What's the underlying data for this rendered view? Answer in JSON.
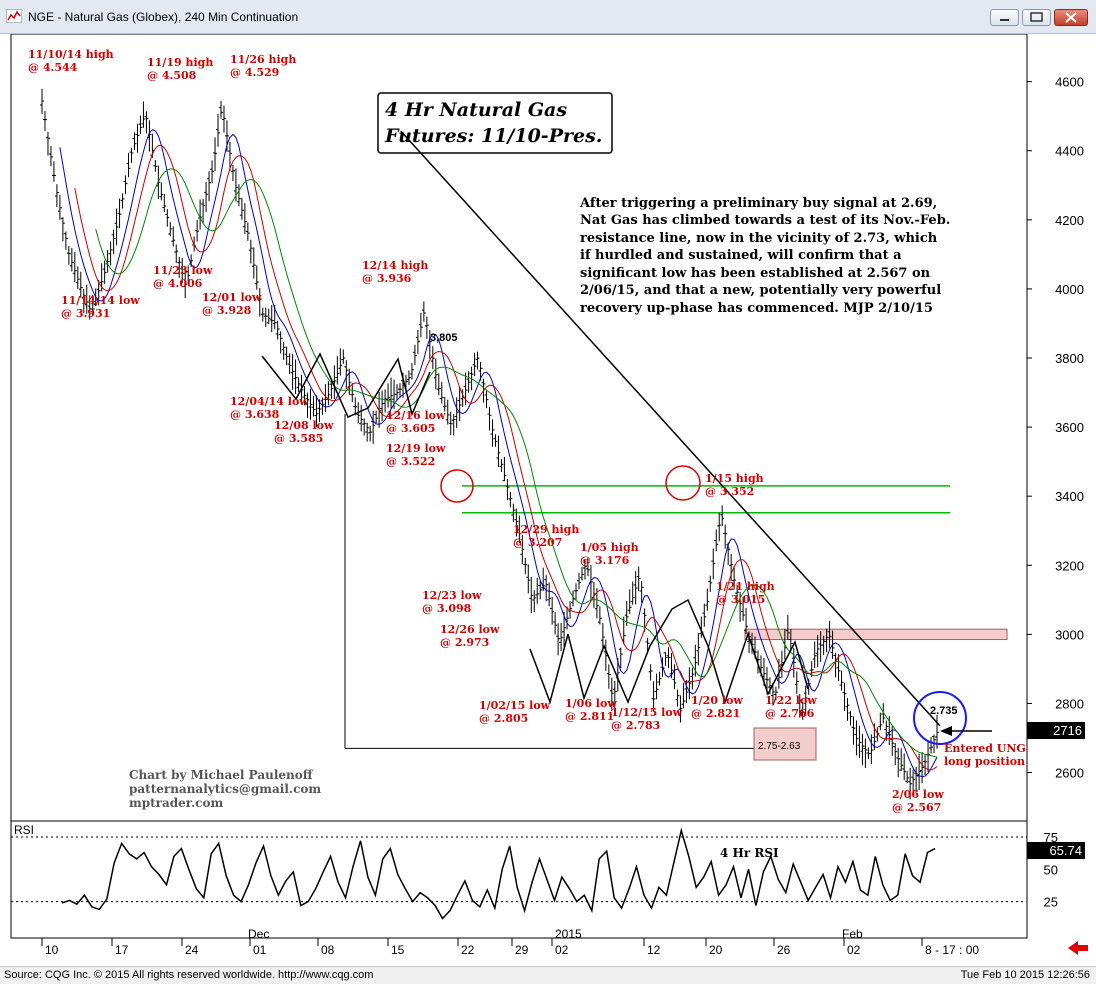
{
  "window": {
    "title": "NGE - Natural Gas (Globex), 240 Min Continuation",
    "minimize_icon": "minimize-icon",
    "maximize_icon": "maximize-icon",
    "close_icon": "close-icon"
  },
  "footer": {
    "source": "Source: CQG Inc. © 2015 All rights reserved worldwide. http://www.cqg.com",
    "timestamp": "Tue Feb 10 2015 12:26:56"
  },
  "chart_data": [
    {
      "type": "bar",
      "title_line1": "4 Hr Natural Gas",
      "title_line2": "Futures:  11/10-Pres.",
      "ylim": [
        2480,
        4680
      ],
      "y_ticks": [
        2600,
        2800,
        3000,
        3200,
        3400,
        3600,
        3800,
        4000,
        4200,
        4400,
        4600
      ],
      "y_tick_labels": [
        "2600",
        "2800",
        "3000",
        "3200",
        "3400",
        "3600",
        "3800",
        "4000",
        "4200",
        "4400",
        "4600"
      ],
      "x_ticks": [
        "10",
        "17",
        "24",
        "01",
        "08",
        "15",
        "22",
        "29",
        "02",
        "12",
        "20",
        "26",
        "02",
        "8 - 17 : 00"
      ],
      "month_labels": [
        "Dec",
        "2015",
        "Feb"
      ],
      "last_price": "2716",
      "ohlc_path": [
        {
          "x": 0,
          "y": 4544
        },
        {
          "x": 3,
          "y": 4300
        },
        {
          "x": 6,
          "y": 4100
        },
        {
          "x": 9,
          "y": 3990
        },
        {
          "x": 11,
          "y": 3931
        },
        {
          "x": 14,
          "y": 4050
        },
        {
          "x": 17,
          "y": 4200
        },
        {
          "x": 20,
          "y": 4400
        },
        {
          "x": 23,
          "y": 4508
        },
        {
          "x": 26,
          "y": 4300
        },
        {
          "x": 29,
          "y": 4150
        },
        {
          "x": 32,
          "y": 4006
        },
        {
          "x": 35,
          "y": 4200
        },
        {
          "x": 38,
          "y": 4350
        },
        {
          "x": 40,
          "y": 4529
        },
        {
          "x": 43,
          "y": 4300
        },
        {
          "x": 46,
          "y": 4150
        },
        {
          "x": 49,
          "y": 3928
        },
        {
          "x": 52,
          "y": 3900
        },
        {
          "x": 55,
          "y": 3780
        },
        {
          "x": 58,
          "y": 3700
        },
        {
          "x": 61,
          "y": 3638
        },
        {
          "x": 64,
          "y": 3700
        },
        {
          "x": 67,
          "y": 3800
        },
        {
          "x": 70,
          "y": 3640
        },
        {
          "x": 73,
          "y": 3585
        },
        {
          "x": 76,
          "y": 3680
        },
        {
          "x": 79,
          "y": 3700
        },
        {
          "x": 82,
          "y": 3750
        },
        {
          "x": 85,
          "y": 3936
        },
        {
          "x": 88,
          "y": 3720
        },
        {
          "x": 91,
          "y": 3605
        },
        {
          "x": 94,
          "y": 3700
        },
        {
          "x": 97,
          "y": 3805
        },
        {
          "x": 100,
          "y": 3600
        },
        {
          "x": 103,
          "y": 3450
        },
        {
          "x": 106,
          "y": 3300
        },
        {
          "x": 109,
          "y": 3098
        },
        {
          "x": 112,
          "y": 3150
        },
        {
          "x": 115,
          "y": 2973
        },
        {
          "x": 118,
          "y": 3100
        },
        {
          "x": 121,
          "y": 3207
        },
        {
          "x": 124,
          "y": 3050
        },
        {
          "x": 127,
          "y": 2805
        },
        {
          "x": 130,
          "y": 3050
        },
        {
          "x": 133,
          "y": 3176
        },
        {
          "x": 136,
          "y": 2811
        },
        {
          "x": 139,
          "y": 2950
        },
        {
          "x": 142,
          "y": 2783
        },
        {
          "x": 145,
          "y": 2900
        },
        {
          "x": 148,
          "y": 3100
        },
        {
          "x": 151,
          "y": 3352
        },
        {
          "x": 154,
          "y": 3150
        },
        {
          "x": 157,
          "y": 3000
        },
        {
          "x": 160,
          "y": 2900
        },
        {
          "x": 163,
          "y": 2821
        },
        {
          "x": 166,
          "y": 3015
        },
        {
          "x": 169,
          "y": 2766
        },
        {
          "x": 172,
          "y": 2950
        },
        {
          "x": 175,
          "y": 3000
        },
        {
          "x": 178,
          "y": 2850
        },
        {
          "x": 181,
          "y": 2700
        },
        {
          "x": 184,
          "y": 2650
        },
        {
          "x": 187,
          "y": 2760
        },
        {
          "x": 190,
          "y": 2650
        },
        {
          "x": 193,
          "y": 2567
        },
        {
          "x": 196,
          "y": 2620
        },
        {
          "x": 199,
          "y": 2716
        }
      ],
      "x_span": [
        0,
        199
      ],
      "resistance_line": {
        "from": {
          "x": 40,
          "y": 4529
        },
        "to": {
          "x": 199,
          "y": 2735
        }
      },
      "support_line": 2670,
      "horizontal_levels": [
        3430,
        3352
      ],
      "resistance_zone": [
        2985,
        3015
      ],
      "support_zone_label": "2.75-2.63",
      "target_label": "2.735",
      "annotations": [
        {
          "text1": "11/10/14 high",
          "text2": "@ 4.544"
        },
        {
          "text1": "11/19 high",
          "text2": "@ 4.508"
        },
        {
          "text1": "11/26 high",
          "text2": "@ 4.529"
        },
        {
          "text1": "11/14/14 low",
          "text2": "@ 3.931"
        },
        {
          "text1": "11/23 low",
          "text2": "@ 4.006"
        },
        {
          "text1": "12/01 low",
          "text2": "@ 3.928"
        },
        {
          "text1": "12/14 high",
          "text2": "@ 3.936"
        },
        {
          "text1": "12/04/14 low",
          "text2": "@ 3.638"
        },
        {
          "text1": "12/08 low",
          "text2": "@ 3.585"
        },
        {
          "text1": "12/16 low",
          "text2": "@ 3.605"
        },
        {
          "text1": "12/19 low",
          "text2": "@ 3.522"
        },
        {
          "text1": "12/29 high",
          "text2": "@ 3.207"
        },
        {
          "text1": "1/05 high",
          "text2": "@ 3.176"
        },
        {
          "text1": "12/23 low",
          "text2": "@ 3.098"
        },
        {
          "text1": "12/26 low",
          "text2": "@ 2.973"
        },
        {
          "text1": "1/02/15 low",
          "text2": "@ 2.805"
        },
        {
          "text1": "1/06 low",
          "text2": "@ 2.811"
        },
        {
          "text1": "1/12/15 low",
          "text2": "@ 2.783"
        },
        {
          "text1": "1/15 high",
          "text2": "@ 3.352"
        },
        {
          "text1": "1/21 high",
          "text2": "@ 3.015"
        },
        {
          "text1": "1/20 low",
          "text2": "@ 2.821"
        },
        {
          "text1": "1/22 low",
          "text2": "@ 2.766"
        },
        {
          "text1": "2/06 low",
          "text2": "@ 2.567"
        },
        {
          "text1": "Entered UNG",
          "text2": "long position"
        }
      ],
      "peak_label": "3,805",
      "commentary": [
        "After triggering a preliminary buy signal at 2.69,",
        "Nat Gas has climbed towards a test of its Nov.-Feb.",
        "resistance line, now in the vicinity of 2.73, which",
        "if hurdled and sustained, will confirm that a",
        "significant low has been established at 2.567 on",
        "2/06/15, and that a new, potentially very powerful",
        "recovery up-phase has commenced. MJP 2/10/15"
      ],
      "credits": [
        "Chart by Michael Paulenoff",
        "patternanalytics@gmail.com",
        "mptrader.com"
      ],
      "colors": {
        "price": "#000000",
        "ma_fast": "#0000cc",
        "ma_mid": "#cc0000",
        "ma_slow": "#008800",
        "annotation": "#d40000",
        "levels": "#00bb00",
        "circle_red": "#dd0000",
        "circle_blue": "#1a1aff"
      }
    },
    {
      "type": "line",
      "label": "RSI",
      "title": "4 Hr RSI",
      "ylim": [
        0,
        85
      ],
      "y_tick_labels": [
        "75",
        "50",
        "25"
      ],
      "y_ticks": [
        75,
        50,
        25
      ],
      "last_value": "65.74",
      "values": [
        24,
        26,
        23,
        30,
        21,
        19,
        27,
        55,
        70,
        62,
        58,
        63,
        52,
        46,
        38,
        60,
        66,
        50,
        35,
        28,
        62,
        70,
        45,
        30,
        25,
        38,
        55,
        68,
        45,
        30,
        41,
        48,
        22,
        25,
        35,
        48,
        60,
        40,
        28,
        52,
        72,
        44,
        30,
        58,
        66,
        46,
        35,
        25,
        32,
        28,
        22,
        12,
        18,
        30,
        41,
        26,
        21,
        34,
        20,
        50,
        68,
        36,
        18,
        40,
        58,
        42,
        26,
        44,
        35,
        25,
        30,
        18,
        58,
        64,
        28,
        20,
        35,
        52,
        30,
        20,
        36,
        30,
        55,
        80,
        60,
        36,
        44,
        56,
        30,
        38,
        52,
        28,
        50,
        22,
        48,
        60,
        42,
        32,
        54,
        40,
        26,
        36,
        46,
        28,
        52,
        40,
        56,
        34,
        30,
        60,
        38,
        26,
        30,
        62,
        45,
        40,
        63,
        66
      ]
    }
  ]
}
